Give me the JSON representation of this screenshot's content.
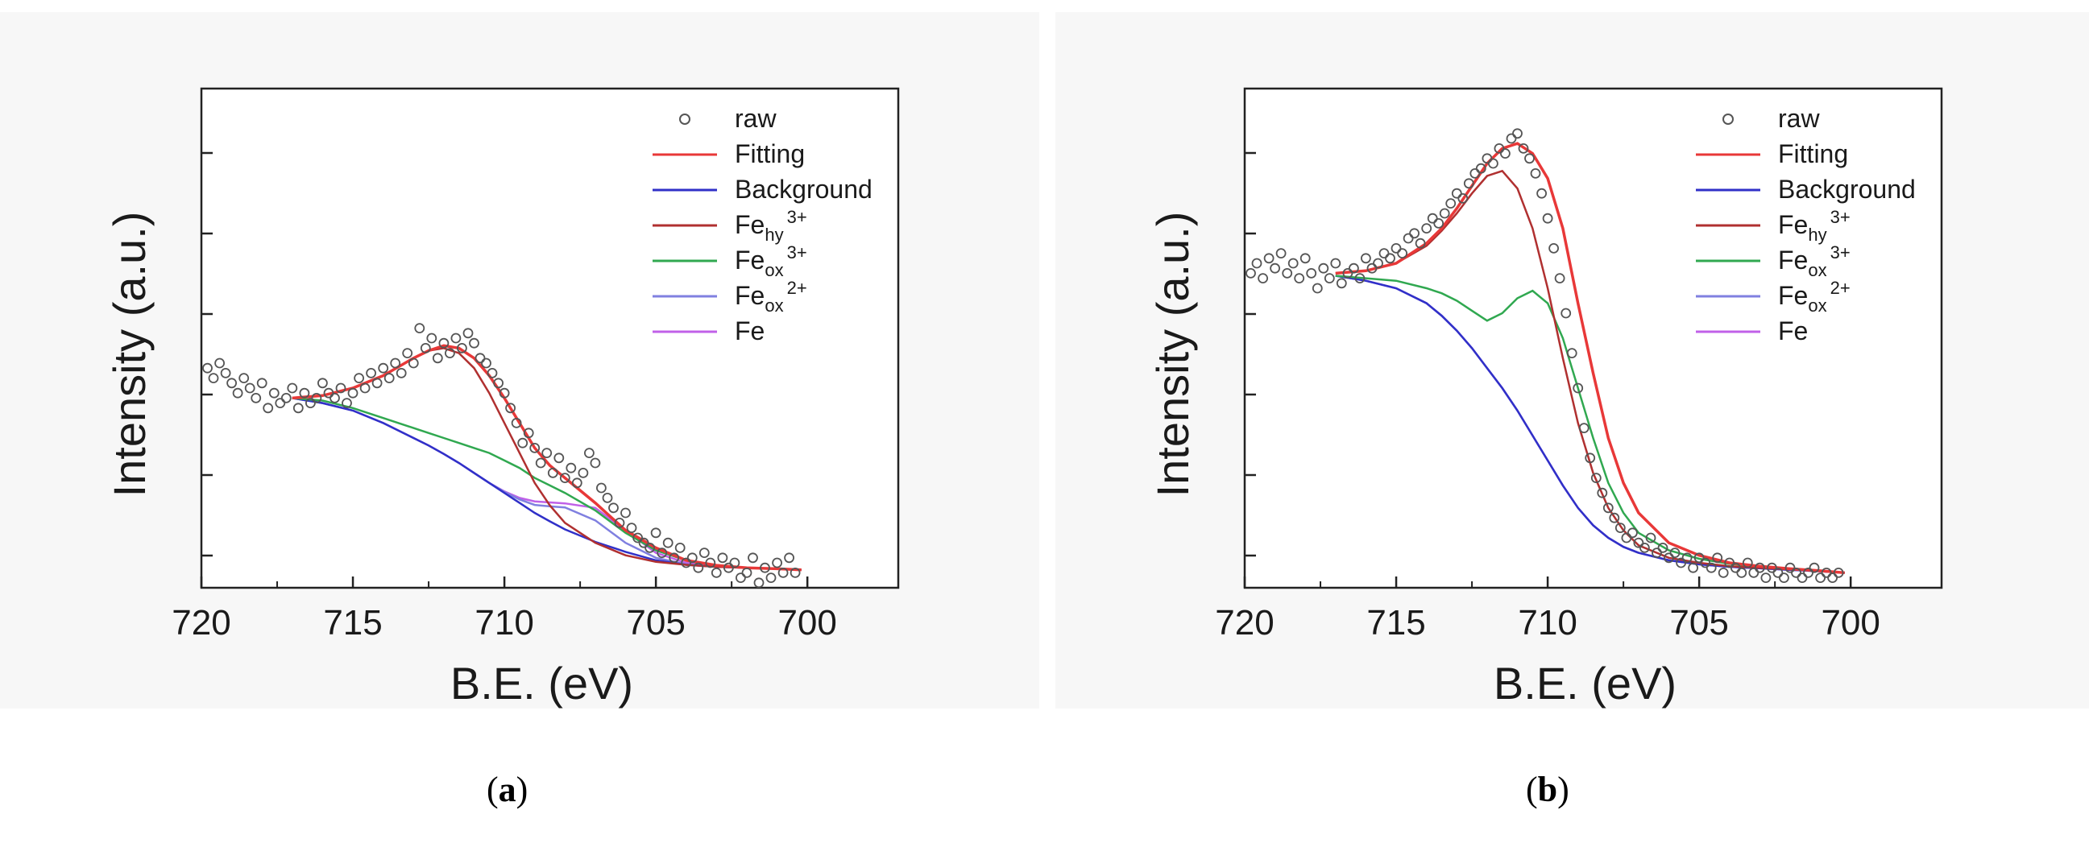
{
  "chart_data": [
    {
      "type": "line",
      "panel": "a",
      "caption_letter": "a",
      "xlabel": "B.E. (eV)",
      "ylabel": "Intensity (a.u.)",
      "xlim": [
        720,
        697
      ],
      "xticks": [
        "720",
        "715",
        "710",
        "705",
        "700"
      ],
      "xtick_values": [
        720,
        715,
        710,
        705,
        700
      ],
      "ylim": [
        0,
        100
      ],
      "yticks_count": 6,
      "legend": [
        {
          "key": "raw",
          "label": "raw",
          "sub": "",
          "sup": "",
          "color": "#555555",
          "marker": "circle"
        },
        {
          "key": "fitting",
          "label": "Fitting",
          "sub": "",
          "sup": "",
          "color": "#e83838"
        },
        {
          "key": "background",
          "label": "Background",
          "sub": "",
          "sup": "",
          "color": "#3030c8"
        },
        {
          "key": "fehy3",
          "label": "Fe",
          "sub": "hy",
          "sup": "3+",
          "color": "#b03030"
        },
        {
          "key": "feox3",
          "label": "Fe",
          "sub": "ox",
          "sup": "3+",
          "color": "#30a850"
        },
        {
          "key": "feox2",
          "label": "Fe",
          "sub": "ox",
          "sup": "2+",
          "color": "#8080e0"
        },
        {
          "key": "fe",
          "label": "Fe",
          "sub": "",
          "sup": "",
          "color": "#c060e8"
        }
      ],
      "curves_x": [
        717,
        716,
        715,
        714,
        713,
        712.5,
        712,
        711.5,
        711,
        710.5,
        710,
        709.5,
        709,
        708.5,
        708,
        707,
        706,
        705,
        704,
        703,
        702,
        701,
        700.2
      ],
      "series": [
        {
          "key": "fitting",
          "values": [
            38,
            38.5,
            40,
            42.5,
            46,
            47.5,
            48.5,
            48,
            46,
            42.5,
            38,
            33,
            28,
            24.5,
            22,
            17,
            11.5,
            8,
            5.5,
            4.5,
            4,
            3.8,
            3.6
          ]
        },
        {
          "key": "fehy3",
          "values": [
            38,
            38.5,
            40,
            42.5,
            46,
            47.5,
            48,
            47,
            44,
            39,
            33,
            27,
            21,
            16.5,
            13,
            9,
            6.5,
            5.2,
            4.6,
            4.2,
            4,
            3.8,
            3.6
          ]
        },
        {
          "key": "feox3",
          "values": [
            38,
            37.5,
            36,
            34,
            32,
            31,
            30,
            29,
            28,
            27,
            25.5,
            24,
            22,
            20.5,
            19,
            15.5,
            11,
            7.5,
            5.5,
            4.5,
            4,
            3.8,
            3.6
          ]
        },
        {
          "key": "background",
          "values": [
            38,
            37,
            35.5,
            33,
            30,
            28.5,
            26.8,
            25,
            23,
            21,
            19,
            17,
            15,
            13.3,
            11.7,
            9.2,
            7.2,
            5.5,
            4.6,
            4.2,
            4,
            3.8,
            3.6
          ]
        },
        {
          "key": "feox2",
          "values": [
            38,
            37,
            35.5,
            33,
            30,
            28.5,
            26.8,
            25,
            23,
            21,
            19.2,
            17.7,
            16.6,
            16.3,
            16.1,
            13.5,
            9,
            6,
            4.7,
            4.2,
            4,
            3.8,
            3.6
          ]
        },
        {
          "key": "fe",
          "values": [
            38,
            37,
            35.5,
            33,
            30,
            28.5,
            26.8,
            25,
            23,
            21,
            19.3,
            18,
            17.3,
            17.1,
            16.9,
            16,
            11.5,
            7,
            5,
            4.3,
            4,
            3.8,
            3.6
          ]
        }
      ],
      "raw_x": [
        719.8,
        719.6,
        719.4,
        719.2,
        719.0,
        718.8,
        718.6,
        718.4,
        718.2,
        718.0,
        717.8,
        717.6,
        717.4,
        717.2,
        717.0,
        716.8,
        716.6,
        716.4,
        716.2,
        716.0,
        715.8,
        715.6,
        715.4,
        715.2,
        715.0,
        714.8,
        714.6,
        714.4,
        714.2,
        714.0,
        713.8,
        713.6,
        713.4,
        713.2,
        713.0,
        712.8,
        712.6,
        712.4,
        712.2,
        712.0,
        711.8,
        711.6,
        711.4,
        711.2,
        711.0,
        710.8,
        710.6,
        710.4,
        710.2,
        710.0,
        709.8,
        709.6,
        709.4,
        709.2,
        709.0,
        708.8,
        708.6,
        708.4,
        708.2,
        708.0,
        707.8,
        707.6,
        707.4,
        707.2,
        707.0,
        706.8,
        706.6,
        706.4,
        706.2,
        706.0,
        705.8,
        705.6,
        705.4,
        705.2,
        705.0,
        704.8,
        704.6,
        704.4,
        704.2,
        704.0,
        703.8,
        703.6,
        703.4,
        703.2,
        703.0,
        702.8,
        702.6,
        702.4,
        702.2,
        702.0,
        701.8,
        701.6,
        701.4,
        701.2,
        701.0,
        700.8,
        700.6,
        700.4
      ],
      "raw_y": [
        44,
        42,
        45,
        43,
        41,
        39,
        42,
        40,
        38,
        41,
        36,
        39,
        37,
        38,
        40,
        36,
        39,
        37,
        38,
        41,
        39,
        38,
        40,
        37,
        39,
        42,
        40,
        43,
        41,
        44,
        42,
        45,
        43,
        47,
        45,
        52,
        48,
        50,
        46,
        49,
        47,
        50,
        48,
        51,
        49,
        46,
        45,
        43,
        41,
        39,
        36,
        33,
        29,
        31,
        28,
        25,
        27,
        23,
        26,
        22,
        24,
        21,
        23,
        27,
        25,
        20,
        18,
        16,
        13,
        15,
        12,
        10,
        9,
        8,
        11,
        7,
        9,
        6,
        8,
        5,
        6,
        4,
        7,
        5,
        3,
        6,
        4,
        5,
        2,
        3,
        6,
        1,
        4,
        2,
        5,
        3,
        6,
        3
      ]
    },
    {
      "type": "line",
      "panel": "b",
      "caption_letter": "b",
      "xlabel": "B.E. (eV)",
      "ylabel": "Intensity (a.u.)",
      "xlim": [
        720,
        697
      ],
      "xticks": [
        "720",
        "715",
        "710",
        "705",
        "700"
      ],
      "xtick_values": [
        720,
        715,
        710,
        705,
        700
      ],
      "ylim": [
        0,
        100
      ],
      "yticks_count": 6,
      "legend": [
        {
          "key": "raw",
          "label": "raw",
          "sub": "",
          "sup": "",
          "color": "#555555",
          "marker": "circle"
        },
        {
          "key": "fitting",
          "label": "Fitting",
          "sub": "",
          "sup": "",
          "color": "#e83838"
        },
        {
          "key": "background",
          "label": "Background",
          "sub": "",
          "sup": "",
          "color": "#3030c8"
        },
        {
          "key": "fehy3",
          "label": "Fe",
          "sub": "hy",
          "sup": "3+",
          "color": "#b03030"
        },
        {
          "key": "feox3",
          "label": "Fe",
          "sub": "ox",
          "sup": "3+",
          "color": "#30a850"
        },
        {
          "key": "feox2",
          "label": "Fe",
          "sub": "ox",
          "sup": "2+",
          "color": "#8080e0"
        },
        {
          "key": "fe",
          "label": "Fe",
          "sub": "",
          "sup": "",
          "color": "#c060e8"
        }
      ],
      "curves_x": [
        717,
        716,
        715,
        714,
        713.5,
        713,
        712.5,
        712,
        711.5,
        711,
        710.5,
        710,
        709.5,
        709,
        708.5,
        708,
        707.5,
        707,
        706,
        705,
        704,
        703,
        702,
        701,
        700.2
      ],
      "series": [
        {
          "key": "fitting",
          "values": [
            63,
            63.5,
            65,
            69,
            72,
            76,
            80.5,
            85,
            88,
            89,
            87,
            82,
            72,
            57,
            43,
            30,
            21,
            15,
            9,
            6.5,
            5,
            4.3,
            3.8,
            3.4,
            3
          ]
        },
        {
          "key": "fehy3",
          "values": [
            63,
            63.5,
            65,
            68.5,
            71.5,
            75,
            79,
            82.5,
            83.5,
            80,
            72,
            60,
            46,
            33,
            23,
            16,
            11.5,
            8.5,
            6,
            5,
            4.3,
            4,
            3.7,
            3.3,
            3
          ]
        },
        {
          "key": "feox3",
          "values": [
            62.5,
            62,
            61.5,
            60,
            59,
            57.5,
            55.5,
            53.5,
            55,
            58,
            59.5,
            57,
            50,
            40,
            30,
            21,
            15,
            11,
            7.5,
            5.8,
            4.8,
            4.2,
            3.8,
            3.4,
            3
          ]
        },
        {
          "key": "background",
          "values": [
            62.5,
            61.5,
            60,
            57,
            54.5,
            51.5,
            48,
            44,
            40,
            35.5,
            30.5,
            25.5,
            20.5,
            16,
            12.5,
            10,
            8.2,
            7,
            5.5,
            4.7,
            4.2,
            3.9,
            3.6,
            3.3,
            3
          ]
        },
        {
          "key": "feox2",
          "values": [
            62.5,
            61.5,
            60,
            57,
            54.5,
            51.5,
            48,
            44,
            40,
            35.5,
            30.5,
            25.5,
            20.5,
            16,
            12.5,
            10,
            8.2,
            7,
            5.5,
            4.7,
            4.2,
            3.9,
            3.6,
            3.3,
            3
          ]
        },
        {
          "key": "fe",
          "values": [
            62.5,
            61.5,
            60,
            57,
            54.5,
            51.5,
            48,
            44,
            40,
            35.5,
            30.5,
            25.5,
            20.5,
            16,
            12.5,
            10,
            8.2,
            7,
            5.5,
            4.7,
            4.2,
            3.9,
            3.6,
            3.3,
            3
          ]
        }
      ],
      "raw_x": [
        719.8,
        719.6,
        719.4,
        719.2,
        719.0,
        718.8,
        718.6,
        718.4,
        718.2,
        718.0,
        717.8,
        717.6,
        717.4,
        717.2,
        717.0,
        716.8,
        716.6,
        716.4,
        716.2,
        716.0,
        715.8,
        715.6,
        715.4,
        715.2,
        715.0,
        714.8,
        714.6,
        714.4,
        714.2,
        714.0,
        713.8,
        713.6,
        713.4,
        713.2,
        713.0,
        712.8,
        712.6,
        712.4,
        712.2,
        712.0,
        711.8,
        711.6,
        711.4,
        711.2,
        711.0,
        710.8,
        710.6,
        710.4,
        710.2,
        710.0,
        709.8,
        709.6,
        709.4,
        709.2,
        709.0,
        708.8,
        708.6,
        708.4,
        708.2,
        708.0,
        707.8,
        707.6,
        707.4,
        707.2,
        707.0,
        706.8,
        706.6,
        706.4,
        706.2,
        706.0,
        705.8,
        705.6,
        705.4,
        705.2,
        705.0,
        704.8,
        704.6,
        704.4,
        704.2,
        704.0,
        703.8,
        703.6,
        703.4,
        703.2,
        703.0,
        702.8,
        702.6,
        702.4,
        702.2,
        702.0,
        701.8,
        701.6,
        701.4,
        701.2,
        701.0,
        700.8,
        700.6,
        700.4
      ],
      "raw_y": [
        63,
        65,
        62,
        66,
        64,
        67,
        63,
        65,
        62,
        66,
        63,
        60,
        64,
        62,
        65,
        61,
        63,
        64,
        62,
        66,
        64,
        65,
        67,
        66,
        68,
        67,
        70,
        71,
        69,
        72,
        74,
        73,
        75,
        77,
        79,
        78,
        81,
        83,
        84,
        86,
        85,
        88,
        87,
        90,
        91,
        88,
        86,
        83,
        79,
        74,
        68,
        62,
        55,
        47,
        40,
        32,
        26,
        22,
        19,
        16,
        14,
        12,
        10,
        11,
        9,
        8,
        10,
        7,
        8,
        6,
        7,
        5,
        6,
        4,
        6,
        5,
        4,
        6,
        3,
        5,
        4,
        3,
        5,
        3,
        4,
        2,
        4,
        3,
        2,
        4,
        3,
        2,
        3,
        4,
        2,
        3,
        2,
        3
      ]
    }
  ]
}
